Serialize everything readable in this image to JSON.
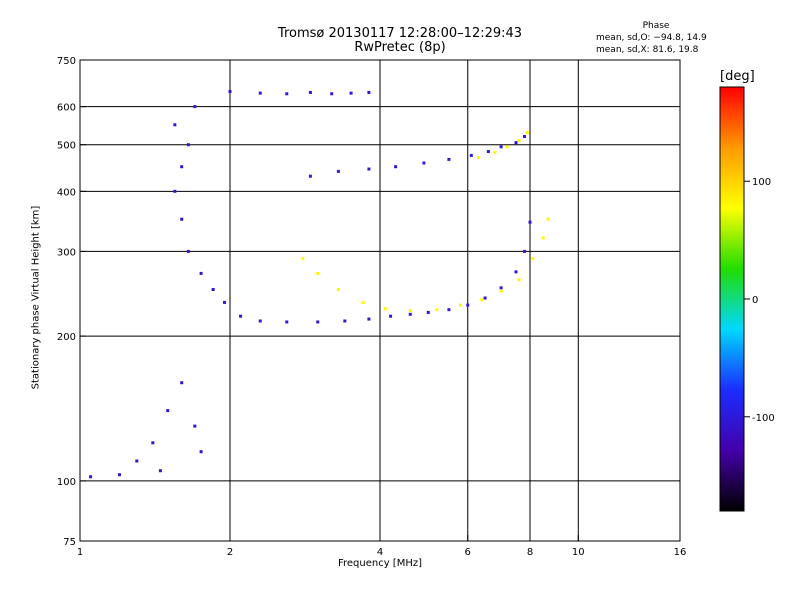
{
  "chart_data": {
    "type": "scatter",
    "title": "Tromsø 20130117 12:28:00–12:29:43",
    "subtitle": "RwPretec (8p)",
    "xlabel": "Frequency [MHz]",
    "ylabel": "Stationary phase Virtual Height [km]",
    "x_scale": "log",
    "y_scale": "log",
    "xlim": [
      1,
      16
    ],
    "ylim": [
      75,
      750
    ],
    "x_ticks": [
      1,
      2,
      4,
      6,
      8,
      10,
      16
    ],
    "y_ticks": [
      75,
      100,
      200,
      300,
      400,
      500,
      600,
      750
    ],
    "x_grid": [
      2,
      4,
      6,
      8,
      10
    ],
    "y_grid": [
      100,
      200,
      300,
      400,
      500,
      600
    ],
    "phase_stats": {
      "title": "Phase",
      "o_mode": "mean, sd,O: −94.8, 14.9",
      "x_mode": "mean, sd,X:  81.6, 19.8"
    },
    "colorbar": {
      "unit": "[deg]",
      "ticks": [
        100,
        0,
        -100
      ],
      "range": [
        -180,
        180
      ],
      "stops": [
        "#000000",
        "#4400aa",
        "#1a2dff",
        "#00d8ff",
        "#22dd00",
        "#ffff00",
        "#ff9900",
        "#ff0000"
      ]
    },
    "series": [
      {
        "mode": "O trace (lower)",
        "color_deg": -100,
        "points": [
          [
            2.1,
            220
          ],
          [
            2.3,
            215
          ],
          [
            2.6,
            214
          ],
          [
            3,
            214
          ],
          [
            3.4,
            215
          ],
          [
            3.8,
            217
          ],
          [
            4.2,
            220
          ],
          [
            4.6,
            222
          ],
          [
            5,
            224
          ],
          [
            5.5,
            227
          ],
          [
            6,
            232
          ],
          [
            6.5,
            240
          ],
          [
            7,
            252
          ],
          [
            7.5,
            272
          ],
          [
            7.8,
            300
          ],
          [
            8,
            345
          ]
        ]
      },
      {
        "mode": "X trace (lower)",
        "color_deg": 80,
        "points": [
          [
            2.8,
            290
          ],
          [
            3,
            270
          ],
          [
            3.3,
            250
          ],
          [
            3.7,
            235
          ],
          [
            4.1,
            228
          ],
          [
            4.6,
            226
          ],
          [
            5.2,
            227
          ],
          [
            5.8,
            232
          ],
          [
            6.4,
            238
          ],
          [
            7,
            248
          ],
          [
            7.6,
            262
          ],
          [
            8.1,
            290
          ],
          [
            8.5,
            320
          ],
          [
            8.7,
            350
          ]
        ]
      },
      {
        "mode": "O trace (upper)",
        "color_deg": -100,
        "points": [
          [
            2.9,
            430
          ],
          [
            3.3,
            440
          ],
          [
            3.8,
            445
          ],
          [
            4.3,
            450
          ],
          [
            4.9,
            458
          ],
          [
            5.5,
            466
          ],
          [
            6.1,
            475
          ],
          [
            6.6,
            484
          ],
          [
            7,
            495
          ],
          [
            7.5,
            505
          ],
          [
            7.8,
            520
          ]
        ]
      },
      {
        "mode": "X trace (upper)",
        "color_deg": 80,
        "points": [
          [
            6.3,
            470
          ],
          [
            6.8,
            482
          ],
          [
            7.2,
            495
          ],
          [
            7.6,
            510
          ],
          [
            7.9,
            530
          ]
        ]
      },
      {
        "mode": "F-region echoes",
        "color_deg": -105,
        "points": [
          [
            1.55,
            400
          ],
          [
            1.6,
            450
          ],
          [
            1.65,
            500
          ],
          [
            1.55,
            550
          ],
          [
            1.7,
            600
          ],
          [
            1.6,
            350
          ],
          [
            1.65,
            300
          ],
          [
            1.75,
            270
          ],
          [
            1.85,
            250
          ],
          [
            1.95,
            235
          ]
        ]
      },
      {
        "mode": "E-region echoes",
        "color_deg": -105,
        "points": [
          [
            1.05,
            102
          ],
          [
            1.2,
            103
          ],
          [
            1.3,
            110
          ],
          [
            1.4,
            120
          ],
          [
            1.5,
            140
          ],
          [
            1.6,
            160
          ],
          [
            1.7,
            130
          ],
          [
            1.75,
            115
          ],
          [
            1.45,
            105
          ]
        ]
      },
      {
        "mode": "top band echoes",
        "color_deg": -100,
        "points": [
          [
            2,
            645
          ],
          [
            2.3,
            640
          ],
          [
            2.6,
            638
          ],
          [
            2.9,
            642
          ],
          [
            3.2,
            638
          ],
          [
            3.5,
            640
          ],
          [
            3.8,
            642
          ]
        ]
      }
    ]
  }
}
